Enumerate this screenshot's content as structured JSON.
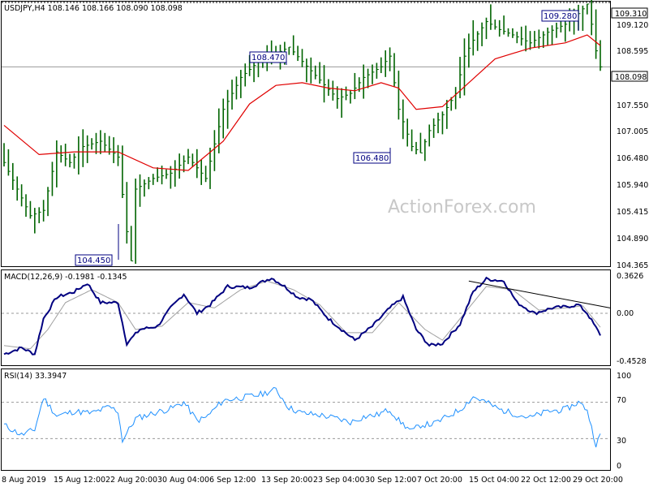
{
  "colors": {
    "candles": "#006400",
    "ma": "#e00000",
    "macd": "#000080",
    "signal": "#a0a0a0",
    "rsi": "#1e90ff",
    "callout": "#000080",
    "watermark": "#c8c8c8"
  },
  "price_panel": {
    "header": "USDJPY,H4  108.146 108.166 108.090 108.098",
    "y_ticks": [
      "109.120",
      "108.595",
      "107.550",
      "107.005",
      "106.480",
      "105.940",
      "105.415",
      "104.890",
      "104.365"
    ],
    "last_price_tag": "108.098",
    "top_level_tag": "109.310",
    "callouts": [
      "109.280",
      "108.470",
      "106.480",
      "104.450"
    ],
    "watermark": "ActionForex.com"
  },
  "macd_panel": {
    "header": "MACD(12,26,9) -0.1981 -0.1345",
    "y_ticks": [
      "0.3626",
      "0.00",
      "-0.4528"
    ]
  },
  "rsi_panel": {
    "header": "RSI(14) 33.3947",
    "y_ticks": [
      "100",
      "70",
      "30",
      "0"
    ]
  },
  "x_axis": {
    "labels": [
      "8 Aug 2019",
      "15 Aug 12:00",
      "22 Aug 20:00",
      "30 Aug 04:00",
      "6 Sep 12:00",
      "13 Sep 20:00",
      "23 Sep 04:00",
      "30 Sep 12:00",
      "7 Oct 20:00",
      "15 Oct 04:00",
      "22 Oct 12:00",
      "29 Oct 20:00"
    ]
  },
  "chart_data": {
    "type": "candlestick",
    "symbol": "USDJPY",
    "timeframe": "H4",
    "x_labels": [
      "8 Aug 2019",
      "15 Aug 12:00",
      "22 Aug 20:00",
      "30 Aug 04:00",
      "6 Sep 12:00",
      "13 Sep 20:00",
      "23 Sep 04:00",
      "30 Sep 12:00",
      "7 Oct 20:00",
      "15 Oct 04:00",
      "22 Oct 12:00",
      "29 Oct 20:00"
    ],
    "price_ylim": [
      104.365,
      109.31
    ],
    "price_path": [
      [
        0,
        106.3
      ],
      [
        6,
        105.3
      ],
      [
        9,
        105.4
      ],
      [
        12,
        106.5
      ],
      [
        15,
        106.3
      ],
      [
        18,
        106.6
      ],
      [
        22,
        106.7
      ],
      [
        26,
        106.4
      ],
      [
        28,
        105.0
      ],
      [
        29,
        104.45
      ],
      [
        30,
        105.8
      ],
      [
        34,
        106.0
      ],
      [
        38,
        106.1
      ],
      [
        42,
        106.4
      ],
      [
        46,
        106.0
      ],
      [
        50,
        107.3
      ],
      [
        54,
        107.9
      ],
      [
        58,
        108.2
      ],
      [
        62,
        108.35
      ],
      [
        65,
        108.47
      ],
      [
        68,
        108.2
      ],
      [
        72,
        107.85
      ],
      [
        76,
        107.5
      ],
      [
        79,
        107.6
      ],
      [
        82,
        107.9
      ],
      [
        86,
        108.1
      ],
      [
        88,
        108.3
      ],
      [
        90,
        107.3
      ],
      [
        93,
        106.6
      ],
      [
        95,
        106.48
      ],
      [
        97,
        106.9
      ],
      [
        100,
        107.2
      ],
      [
        103,
        107.6
      ],
      [
        105,
        108.3
      ],
      [
        107,
        108.6
      ],
      [
        110,
        108.95
      ],
      [
        113,
        108.8
      ],
      [
        116,
        108.7
      ],
      [
        120,
        108.55
      ],
      [
        124,
        108.75
      ],
      [
        128,
        108.9
      ],
      [
        131,
        109.1
      ],
      [
        133,
        109.28
      ],
      [
        134,
        108.9
      ],
      [
        135,
        108.4
      ],
      [
        136,
        108.098
      ]
    ],
    "ma_path": [
      [
        0,
        107.0
      ],
      [
        8,
        106.45
      ],
      [
        16,
        106.5
      ],
      [
        26,
        106.5
      ],
      [
        34,
        106.2
      ],
      [
        42,
        106.15
      ],
      [
        50,
        106.7
      ],
      [
        56,
        107.4
      ],
      [
        62,
        107.75
      ],
      [
        68,
        107.8
      ],
      [
        74,
        107.7
      ],
      [
        80,
        107.65
      ],
      [
        86,
        107.8
      ],
      [
        90,
        107.7
      ],
      [
        94,
        107.3
      ],
      [
        100,
        107.35
      ],
      [
        106,
        107.8
      ],
      [
        112,
        108.25
      ],
      [
        120,
        108.45
      ],
      [
        128,
        108.55
      ],
      [
        133,
        108.7
      ],
      [
        136,
        108.5
      ]
    ],
    "ma_color": "#e00000",
    "macd": {
      "current": -0.1981,
      "signal_current": -0.1345,
      "ylim": [
        -0.4528,
        0.3626
      ],
      "macd_path": [
        [
          0,
          -0.38
        ],
        [
          4,
          -0.32
        ],
        [
          7,
          -0.38
        ],
        [
          9,
          -0.05
        ],
        [
          12,
          0.15
        ],
        [
          16,
          0.2
        ],
        [
          19,
          0.28
        ],
        [
          22,
          0.1
        ],
        [
          26,
          0.1
        ],
        [
          28,
          -0.28
        ],
        [
          31,
          -0.15
        ],
        [
          35,
          -0.12
        ],
        [
          38,
          0.05
        ],
        [
          41,
          0.18
        ],
        [
          44,
          0.0
        ],
        [
          47,
          0.08
        ],
        [
          51,
          0.25
        ],
        [
          56,
          0.24
        ],
        [
          61,
          0.33
        ],
        [
          64,
          0.25
        ],
        [
          67,
          0.15
        ],
        [
          70,
          0.13
        ],
        [
          74,
          -0.05
        ],
        [
          77,
          -0.15
        ],
        [
          80,
          -0.25
        ],
        [
          84,
          -0.12
        ],
        [
          88,
          0.05
        ],
        [
          91,
          0.15
        ],
        [
          94,
          -0.15
        ],
        [
          97,
          -0.3
        ],
        [
          100,
          -0.28
        ],
        [
          104,
          -0.1
        ],
        [
          107,
          0.2
        ],
        [
          110,
          0.32
        ],
        [
          114,
          0.3
        ],
        [
          117,
          0.1
        ],
        [
          121,
          0.0
        ],
        [
          125,
          0.05
        ],
        [
          128,
          0.06
        ],
        [
          131,
          0.08
        ],
        [
          133,
          0.0
        ],
        [
          136,
          -0.2
        ]
      ],
      "signal_path": [
        [
          0,
          -0.3
        ],
        [
          6,
          -0.33
        ],
        [
          10,
          -0.15
        ],
        [
          14,
          0.1
        ],
        [
          20,
          0.22
        ],
        [
          26,
          0.1
        ],
        [
          30,
          -0.15
        ],
        [
          36,
          -0.12
        ],
        [
          42,
          0.1
        ],
        [
          48,
          0.05
        ],
        [
          54,
          0.22
        ],
        [
          60,
          0.3
        ],
        [
          66,
          0.22
        ],
        [
          72,
          0.08
        ],
        [
          78,
          -0.18
        ],
        [
          84,
          -0.18
        ],
        [
          90,
          0.1
        ],
        [
          96,
          -0.15
        ],
        [
          100,
          -0.25
        ],
        [
          106,
          0.05
        ],
        [
          110,
          0.25
        ],
        [
          116,
          0.22
        ],
        [
          122,
          0.03
        ],
        [
          128,
          0.05
        ],
        [
          132,
          0.07
        ],
        [
          136,
          -0.13
        ]
      ],
      "trendline": [
        [
          106,
          0.3
        ],
        [
          136,
          0.05
        ]
      ]
    },
    "rsi": {
      "current": 33.3947,
      "ylim": [
        0,
        100
      ],
      "levels": [
        30,
        70
      ],
      "path": [
        [
          0,
          45
        ],
        [
          4,
          34
        ],
        [
          7,
          40
        ],
        [
          9,
          75
        ],
        [
          12,
          55
        ],
        [
          16,
          60
        ],
        [
          20,
          58
        ],
        [
          24,
          65
        ],
        [
          26,
          60
        ],
        [
          27,
          28
        ],
        [
          30,
          52
        ],
        [
          34,
          58
        ],
        [
          38,
          63
        ],
        [
          41,
          70
        ],
        [
          44,
          50
        ],
        [
          46,
          53
        ],
        [
          50,
          72
        ],
        [
          54,
          75
        ],
        [
          58,
          78
        ],
        [
          62,
          84
        ],
        [
          65,
          64
        ],
        [
          68,
          58
        ],
        [
          72,
          56
        ],
        [
          76,
          52
        ],
        [
          79,
          48
        ],
        [
          82,
          54
        ],
        [
          85,
          56
        ],
        [
          88,
          62
        ],
        [
          90,
          50
        ],
        [
          93,
          38
        ],
        [
          95,
          45
        ],
        [
          98,
          46
        ],
        [
          101,
          54
        ],
        [
          104,
          62
        ],
        [
          107,
          76
        ],
        [
          110,
          70
        ],
        [
          113,
          62
        ],
        [
          116,
          58
        ],
        [
          120,
          53
        ],
        [
          124,
          60
        ],
        [
          128,
          62
        ],
        [
          131,
          70
        ],
        [
          133,
          62
        ],
        [
          134,
          42
        ],
        [
          135,
          24
        ],
        [
          136,
          33
        ]
      ]
    }
  }
}
